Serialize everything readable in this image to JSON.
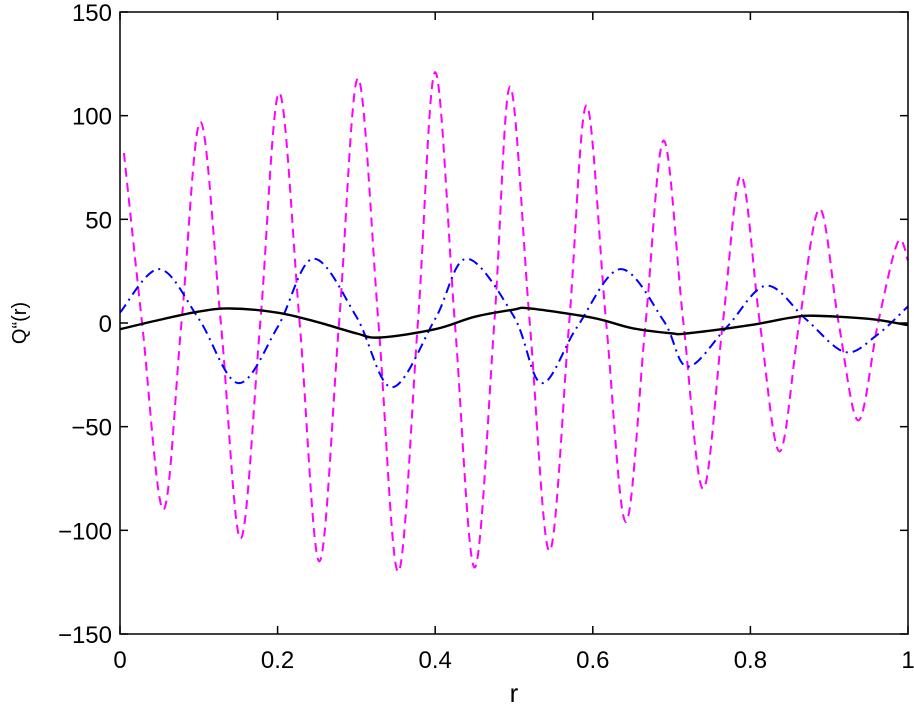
{
  "chart_data": {
    "type": "line",
    "xlabel": "r",
    "ylabel": "Q“(r)",
    "xlim": [
      0,
      1
    ],
    "ylim": [
      -150,
      150
    ],
    "xticks": [
      0,
      0.2,
      0.4,
      0.6,
      0.8,
      1
    ],
    "xtick_labels": [
      "0",
      "0.2",
      "0.4",
      "0.6",
      "0.8",
      "1"
    ],
    "yticks": [
      -150,
      -100,
      -50,
      0,
      50,
      100,
      150
    ],
    "ytick_labels": [
      "−150",
      "−100",
      "−50",
      "0",
      "50",
      "100",
      "150"
    ],
    "grid": false,
    "legend": "none",
    "series": [
      {
        "style": "solid",
        "color": "#000000",
        "x": [
          0.0,
          0.05,
          0.1,
          0.14,
          0.2,
          0.25,
          0.3,
          0.33,
          0.4,
          0.45,
          0.5,
          0.52,
          0.6,
          0.65,
          0.7,
          0.72,
          0.8,
          0.85,
          0.88,
          0.95,
          1.0
        ],
        "y": [
          -3,
          1.5,
          5.5,
          7,
          5,
          0.5,
          -5,
          -7,
          -3,
          3,
          6.5,
          7,
          2.5,
          -2.5,
          -5,
          -5,
          -1,
          2.5,
          3.5,
          2,
          -1
        ]
      },
      {
        "style": "dashdot",
        "color": "#0000ff",
        "x": [
          0.0,
          0.05,
          0.1,
          0.15,
          0.2,
          0.245,
          0.3,
          0.345,
          0.4,
          0.44,
          0.5,
          0.535,
          0.58,
          0.635,
          0.69,
          0.72,
          0.77,
          0.82,
          0.87,
          0.92,
          0.96,
          1.0
        ],
        "y": [
          5,
          26,
          2,
          -29,
          -2,
          31,
          3,
          -31,
          2,
          31,
          3,
          -29,
          -2,
          26,
          1,
          -21,
          -2,
          18,
          2,
          -14,
          -6,
          8
        ]
      },
      {
        "style": "dashed",
        "color": "#ff00ff",
        "x": [
          0.005,
          0.028,
          0.055,
          0.078,
          0.102,
          0.128,
          0.153,
          0.178,
          0.202,
          0.228,
          0.253,
          0.278,
          0.302,
          0.328,
          0.353,
          0.378,
          0.4,
          0.425,
          0.45,
          0.475,
          0.495,
          0.52,
          0.545,
          0.57,
          0.592,
          0.617,
          0.642,
          0.667,
          0.69,
          0.715,
          0.74,
          0.765,
          0.788,
          0.812,
          0.837,
          0.862,
          0.888,
          0.912,
          0.937,
          0.962,
          0.987,
          1.0
        ],
        "y": [
          82,
          0,
          -90,
          0,
          97,
          0,
          -104,
          0,
          111,
          0,
          -115,
          0,
          118,
          0,
          -120,
          0,
          121,
          0,
          -118,
          0,
          114,
          0,
          -110,
          0,
          105,
          0,
          -96,
          0,
          88,
          0,
          -80,
          0,
          71,
          0,
          -62,
          0,
          55,
          0,
          -47,
          0,
          39,
          30
        ]
      }
    ]
  }
}
